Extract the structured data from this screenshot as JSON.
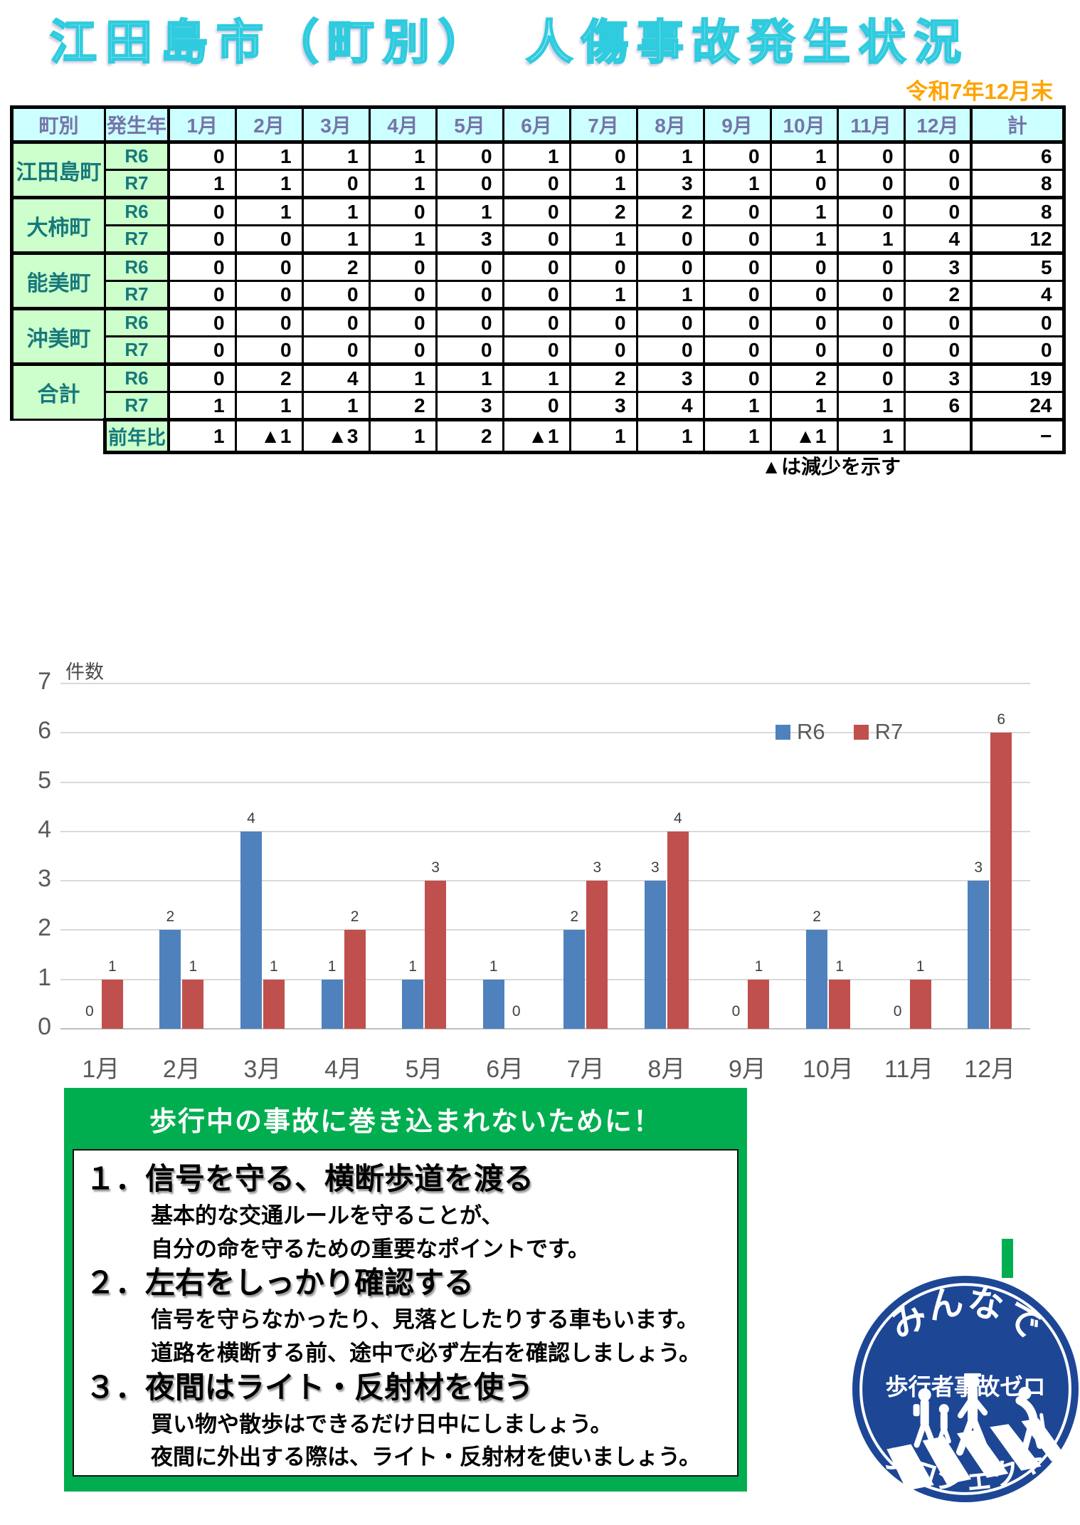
{
  "title": "江田島市（町別）　人傷事故発生状況",
  "date_label": "令和7年12月末",
  "table": {
    "col_headers": [
      "町別",
      "発生年",
      "1月",
      "2月",
      "3月",
      "4月",
      "5月",
      "6月",
      "7月",
      "8月",
      "9月",
      "10月",
      "11月",
      "12月",
      "計"
    ],
    "groups": [
      {
        "name": "江田島町",
        "rows": [
          {
            "year": "R6",
            "values": [
              0,
              1,
              1,
              1,
              0,
              1,
              0,
              1,
              0,
              1,
              0,
              0
            ],
            "total": 6
          },
          {
            "year": "R7",
            "values": [
              1,
              1,
              0,
              1,
              0,
              0,
              1,
              3,
              1,
              0,
              0,
              0
            ],
            "total": 8
          }
        ]
      },
      {
        "name": "大柿町",
        "rows": [
          {
            "year": "R6",
            "values": [
              0,
              1,
              1,
              0,
              1,
              0,
              2,
              2,
              0,
              1,
              0,
              0
            ],
            "total": 8
          },
          {
            "year": "R7",
            "values": [
              0,
              0,
              1,
              1,
              3,
              0,
              1,
              0,
              0,
              1,
              1,
              4
            ],
            "total": 12
          }
        ]
      },
      {
        "name": "能美町",
        "rows": [
          {
            "year": "R6",
            "values": [
              0,
              0,
              2,
              0,
              0,
              0,
              0,
              0,
              0,
              0,
              0,
              3
            ],
            "total": 5
          },
          {
            "year": "R7",
            "values": [
              0,
              0,
              0,
              0,
              0,
              0,
              1,
              1,
              0,
              0,
              0,
              2
            ],
            "total": 4
          }
        ]
      },
      {
        "name": "沖美町",
        "rows": [
          {
            "year": "R6",
            "values": [
              0,
              0,
              0,
              0,
              0,
              0,
              0,
              0,
              0,
              0,
              0,
              0
            ],
            "total": 0
          },
          {
            "year": "R7",
            "values": [
              0,
              0,
              0,
              0,
              0,
              0,
              0,
              0,
              0,
              0,
              0,
              0
            ],
            "total": 0
          }
        ]
      },
      {
        "name": "合計",
        "rows": [
          {
            "year": "R6",
            "values": [
              0,
              2,
              4,
              1,
              1,
              1,
              2,
              3,
              0,
              2,
              0,
              3
            ],
            "total": 19
          },
          {
            "year": "R7",
            "values": [
              1,
              1,
              1,
              2,
              3,
              0,
              3,
              4,
              1,
              1,
              1,
              6
            ],
            "total": 24
          }
        ]
      }
    ],
    "yoy_row": {
      "label": "前年比",
      "values": [
        "1",
        "▲1",
        "▲3",
        "1",
        "2",
        "▲1",
        "1",
        "1",
        "1",
        "▲1",
        "1",
        ""
      ],
      "total": "−"
    },
    "footnote": "▲は減少を示す"
  },
  "chart_data": {
    "type": "bar",
    "title": "",
    "ylabel": "件数",
    "categories": [
      "1月",
      "2月",
      "3月",
      "4月",
      "5月",
      "6月",
      "7月",
      "8月",
      "9月",
      "10月",
      "11月",
      "12月"
    ],
    "series": [
      {
        "name": "R6",
        "color": "#4F81BD",
        "values": [
          0,
          2,
          4,
          1,
          1,
          1,
          2,
          3,
          0,
          2,
          0,
          3
        ]
      },
      {
        "name": "R7",
        "color": "#C0504D",
        "values": [
          1,
          1,
          1,
          2,
          3,
          0,
          3,
          4,
          1,
          1,
          1,
          6
        ]
      }
    ],
    "ylim": [
      0,
      7
    ],
    "yticks": [
      0,
      1,
      2,
      3,
      4,
      5,
      6,
      7
    ],
    "grid": true,
    "legend_position": "top-right",
    "data_labels": true
  },
  "tips": {
    "banner": "歩行中の事故に巻き込まれないために！",
    "items": [
      {
        "heading": "１．信号を守る、横断歩道を渡る",
        "lines": [
          "基本的な交通ルールを守ることが、",
          "自分の命を守るための重要なポイントです。"
        ]
      },
      {
        "heading": "２．左右をしっかり確認する",
        "lines": [
          "信号を守らなかったり、見落としたりする車もいます。",
          "道路を横断する前、途中で必ず左右を確認しましょう。"
        ]
      },
      {
        "heading": "３．夜間はライト・反射材を使う",
        "lines": [
          "買い物や散歩はできるだけ日中にしましょう。",
          "夜間に外出する際は、ライト・反射材を使いましょう。"
        ]
      }
    ]
  },
  "logo": {
    "line1": "みんなで",
    "line2": "歩行者事故ゼロ",
    "line3": "プロジェクト",
    "color": "#1D4695"
  },
  "colors": {
    "title_fill": "#BDF8F8",
    "title_stroke": "#2FCBDE",
    "date_orange": "#FFA300",
    "header_bg": "#CCFFFF",
    "header_text": "#7575A8",
    "label_bg": "#CCFFCC",
    "label_text": "#17787A",
    "banner_green": "#00AE50",
    "bar_blue": "#4F81BD",
    "bar_red": "#C0504D"
  }
}
